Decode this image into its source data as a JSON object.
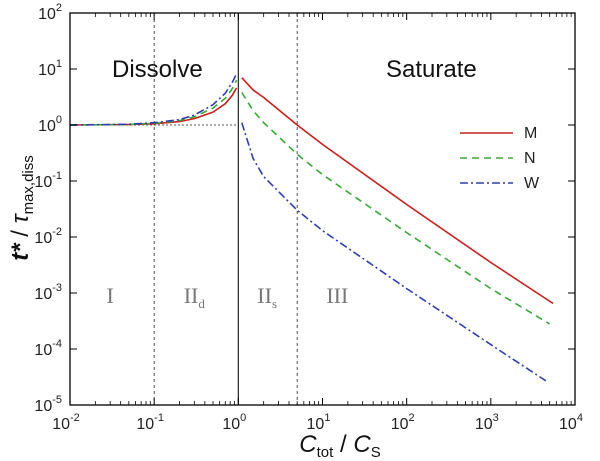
{
  "chart_data": {
    "type": "line",
    "xlabel": {
      "main": "C",
      "sub": "tot",
      "sep": " / ",
      "main2": "C",
      "sub2": "S"
    },
    "ylabel": {
      "main": "t*",
      "sep": " / ",
      "main2": "τ",
      "sub2": "max,diss"
    },
    "x_scale": "log",
    "y_scale": "log",
    "xlim": [
      0.01,
      10000
    ],
    "ylim": [
      1e-05,
      100
    ],
    "x_ticks": [
      {
        "value": 0.01,
        "base": "10",
        "exp": "-2"
      },
      {
        "value": 0.1,
        "base": "10",
        "exp": "-1"
      },
      {
        "value": 1,
        "base": "10",
        "exp": "0"
      },
      {
        "value": 10,
        "base": "10",
        "exp": "1"
      },
      {
        "value": 100,
        "base": "10",
        "exp": "2"
      },
      {
        "value": 1000,
        "base": "10",
        "exp": "3"
      },
      {
        "value": 10000,
        "base": "10",
        "exp": "4"
      }
    ],
    "y_ticks": [
      {
        "value": 1e-05,
        "base": "10",
        "exp": "-5"
      },
      {
        "value": 0.0001,
        "base": "10",
        "exp": "-4"
      },
      {
        "value": 0.001,
        "base": "10",
        "exp": "-3"
      },
      {
        "value": 0.01,
        "base": "10",
        "exp": "-2"
      },
      {
        "value": 0.1,
        "base": "10",
        "exp": "-1"
      },
      {
        "value": 1,
        "base": "10",
        "exp": "0"
      },
      {
        "value": 10,
        "base": "10",
        "exp": "1"
      },
      {
        "value": 100,
        "base": "10",
        "exp": "2"
      }
    ],
    "region_titles": [
      "Dissolve",
      "Saturate"
    ],
    "regions": [
      {
        "main": "I",
        "sub": "",
        "x": 0.03
      },
      {
        "main": "II",
        "sub": "d",
        "x": 0.3
      },
      {
        "main": "II",
        "sub": "s",
        "x": 2.2
      },
      {
        "main": "III",
        "sub": "",
        "x": 15
      }
    ],
    "boundaries": [
      {
        "x": 0.1,
        "style": "dotted"
      },
      {
        "x": 1,
        "style": "solid"
      },
      {
        "x": 5,
        "style": "dotted"
      }
    ],
    "reference_line": {
      "y": 1,
      "x_to": 1
    },
    "series": [
      {
        "name": "M",
        "color": "#c8201e",
        "dash": "solid",
        "x": [
          0.01,
          0.05,
          0.1,
          0.2,
          0.3,
          0.5,
          0.7,
          0.85,
          0.95,
          1.1,
          1.5,
          2,
          5,
          10,
          100,
          1000,
          5500
        ],
        "y": [
          1.0,
          1.02,
          1.05,
          1.15,
          1.3,
          1.7,
          2.4,
          3.4,
          4.6,
          7,
          4.2,
          3.1,
          1.0,
          0.45,
          0.038,
          0.0035,
          0.00065
        ]
      },
      {
        "name": "N",
        "color": "#3aa63a",
        "dash": "dashed",
        "x": [
          0.01,
          0.05,
          0.1,
          0.2,
          0.3,
          0.5,
          0.7,
          0.85,
          0.95,
          1.1,
          1.5,
          2,
          5,
          10,
          100,
          1000,
          5000
        ],
        "y": [
          1.0,
          1.02,
          1.07,
          1.2,
          1.4,
          2.0,
          3.0,
          4.5,
          6.3,
          3.8,
          1.8,
          1.1,
          0.3,
          0.13,
          0.012,
          0.0012,
          0.00028
        ]
      },
      {
        "name": "W",
        "color": "#2f3fa8",
        "dash": "dashdot",
        "x": [
          0.01,
          0.05,
          0.1,
          0.2,
          0.3,
          0.5,
          0.7,
          0.85,
          0.95,
          1.1,
          1.5,
          2,
          5,
          10,
          100,
          1000,
          4500
        ],
        "y": [
          1.0,
          1.03,
          1.1,
          1.25,
          1.5,
          2.3,
          3.7,
          5.8,
          8.2,
          1.1,
          0.25,
          0.12,
          0.03,
          0.013,
          0.0012,
          0.00012,
          2.7e-05
        ]
      }
    ]
  }
}
